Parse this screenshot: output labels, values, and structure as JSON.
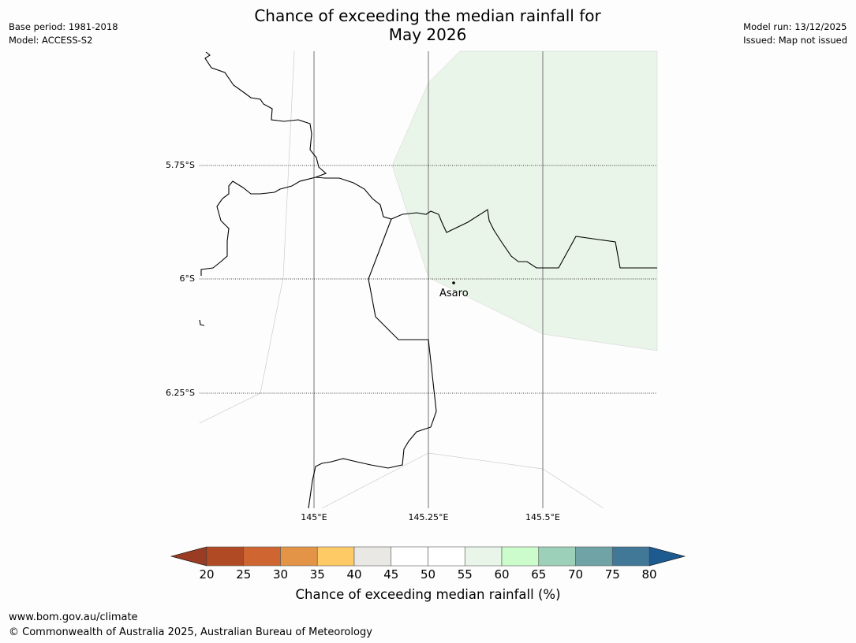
{
  "title": {
    "line1": "Chance of exceeding the median rainfall for",
    "line2": "May 2026"
  },
  "meta_left": {
    "base_period": "Base period: 1981-2018",
    "model": "Model: ACCESS-S2"
  },
  "meta_right": {
    "model_run": "Model run: 13/12/2025",
    "issued": "Issued: Map not issued"
  },
  "map": {
    "lat_labels": [
      "5.75°S",
      "6°S",
      "6.25°S"
    ],
    "lon_labels": [
      "145°E",
      "145.25°E",
      "145.5°E"
    ],
    "place": {
      "name": "Asaro"
    },
    "region_fill": "#e9f5e9",
    "region_category": "55-60"
  },
  "colorbar": {
    "title": "Chance of exceeding median rainfall (%)",
    "ticks": [
      "20",
      "25",
      "30",
      "35",
      "40",
      "45",
      "50",
      "55",
      "60",
      "65",
      "70",
      "75",
      "80"
    ],
    "under_color": "#9a3c24",
    "over_color": "#1d5a90",
    "colors": [
      "#b04a25",
      "#cf6631",
      "#e39447",
      "#fdca66",
      "#e9e8e5",
      "#ffffff",
      "#ffffff",
      "#e9f5e9",
      "#ccfccc",
      "#9dd0b8",
      "#6fa3a5",
      "#417797"
    ]
  },
  "footer": {
    "url": "www.bom.gov.au/climate",
    "copyright": "© Commonwealth of Australia 2025, Australian Bureau of Meteorology"
  }
}
